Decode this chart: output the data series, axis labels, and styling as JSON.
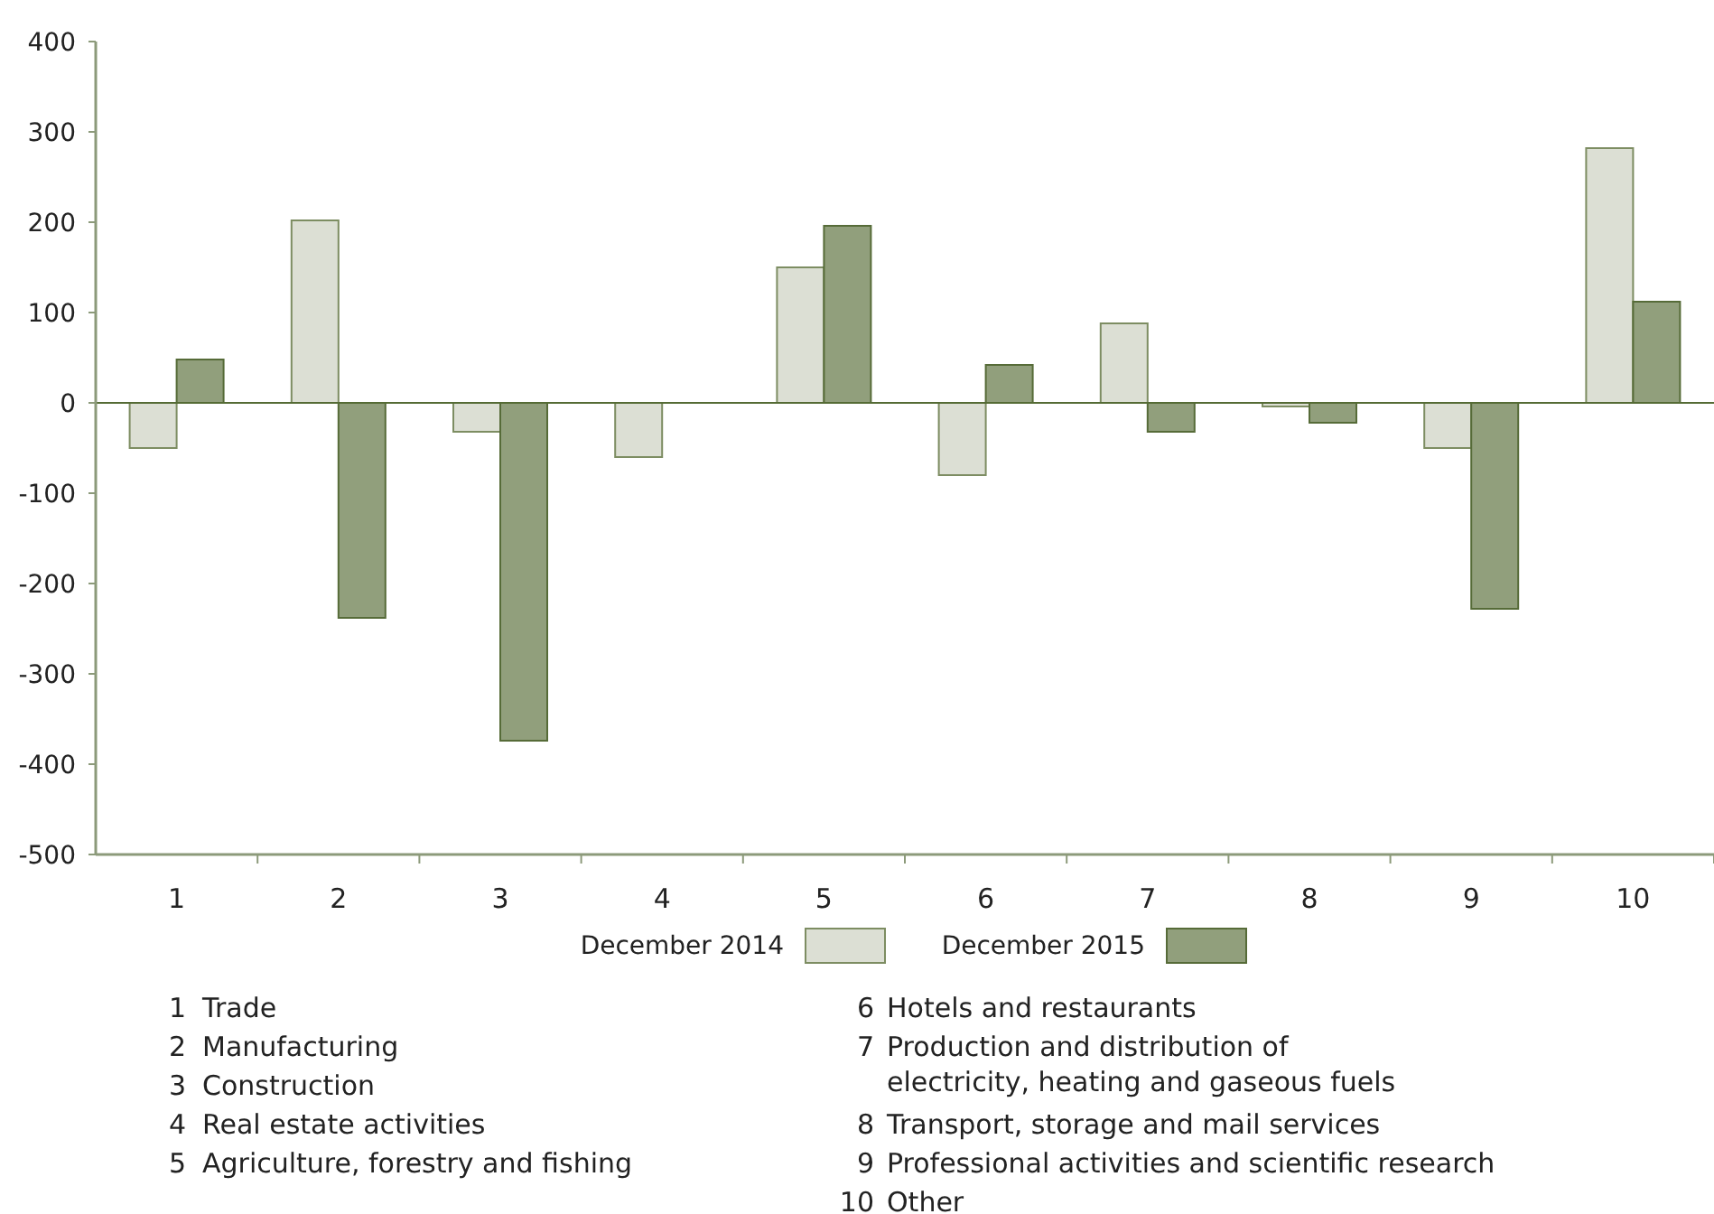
{
  "chart_data": {
    "type": "bar",
    "categories": [
      "1",
      "2",
      "3",
      "4",
      "5",
      "6",
      "7",
      "8",
      "9",
      "10"
    ],
    "series": [
      {
        "name": "December 2014",
        "color": "#dcdfd4",
        "values": [
          -50,
          202,
          -32,
          -60,
          150,
          -80,
          88,
          -4,
          -50,
          282
        ]
      },
      {
        "name": "December 2015",
        "color": "#919f7c",
        "values": [
          48,
          -238,
          -374,
          null,
          196,
          42,
          -32,
          -22,
          -228,
          112
        ]
      }
    ],
    "ylim": [
      -500,
      400
    ],
    "yticks": [
      -500,
      -400,
      -300,
      -200,
      -100,
      0,
      100,
      200,
      300,
      400
    ],
    "grid": false,
    "legend": "bottom",
    "ref_lines": [
      {
        "axis": "y",
        "value": 0,
        "color": "#556b35"
      }
    ],
    "annotations": [
      "1 Trade",
      "2 Manufacturing",
      "3 Construction",
      "4 Real estate activities",
      "5 Agriculture, forestry and fishing",
      "6 Hotels and restaurants",
      "7 Production and distribution of\nelectricity, heating and gaseous fuels",
      "8 Transport, storage and mail services",
      "9 Professional activities and scientific research",
      "10 Other"
    ]
  }
}
